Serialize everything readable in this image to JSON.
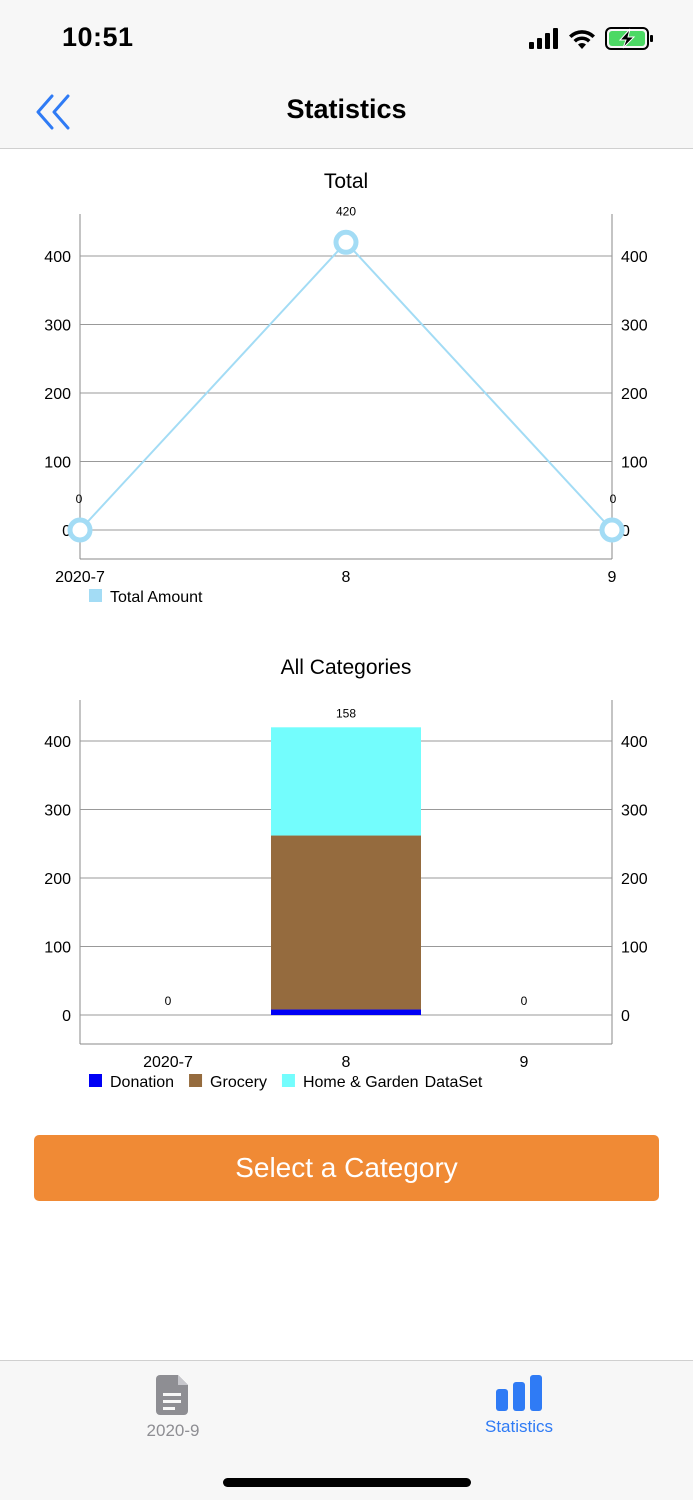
{
  "status_bar": {
    "time": "10:51",
    "icons": [
      "cellular-signal-icon",
      "wifi-icon",
      "battery-charging-icon"
    ],
    "battery_color": "#4cd964"
  },
  "nav": {
    "title": "Statistics",
    "back_icon": "double-chevron-left-icon",
    "accent_color": "#2f7bf5"
  },
  "charts": [
    {
      "type": "line",
      "title": "Total",
      "categories": [
        "2020-7",
        "8",
        "9"
      ],
      "series": [
        {
          "name": "Total Amount",
          "values": [
            0,
            420,
            0
          ],
          "color": "#a3dcf5"
        }
      ],
      "data_labels": [
        "0",
        "420",
        "0"
      ],
      "y_ticks": [
        0,
        100,
        200,
        300,
        400
      ],
      "ylim": [
        -40,
        460
      ],
      "grid": true,
      "legend": "bottom-left"
    },
    {
      "type": "bar",
      "stacked": true,
      "title": "All Categories",
      "categories": [
        "2020-7",
        "8",
        "9"
      ],
      "series": [
        {
          "name": "Donation",
          "values": [
            0,
            8,
            0
          ],
          "color": "#0000f5"
        },
        {
          "name": "Grocery",
          "values": [
            0,
            254,
            0
          ],
          "color": "#956b3e"
        },
        {
          "name": "Home & Garden",
          "values": [
            0,
            158,
            0
          ],
          "color": "#73fdfd"
        }
      ],
      "total_labels": [
        "0",
        "",
        "0"
      ],
      "segment_labels": [
        "8",
        "254",
        "158"
      ],
      "y_ticks": [
        0,
        100,
        200,
        300,
        400
      ],
      "ylim": [
        -40,
        460
      ],
      "grid": true,
      "legend": "bottom-left",
      "legend_suffix": "DataSet"
    }
  ],
  "button": {
    "label": "Select a Category",
    "color": "#f08a35"
  },
  "tabs": [
    {
      "label": "2020-9",
      "icon": "document-icon",
      "active": false
    },
    {
      "label": "Statistics",
      "icon": "bar-chart-icon",
      "active": true
    }
  ]
}
